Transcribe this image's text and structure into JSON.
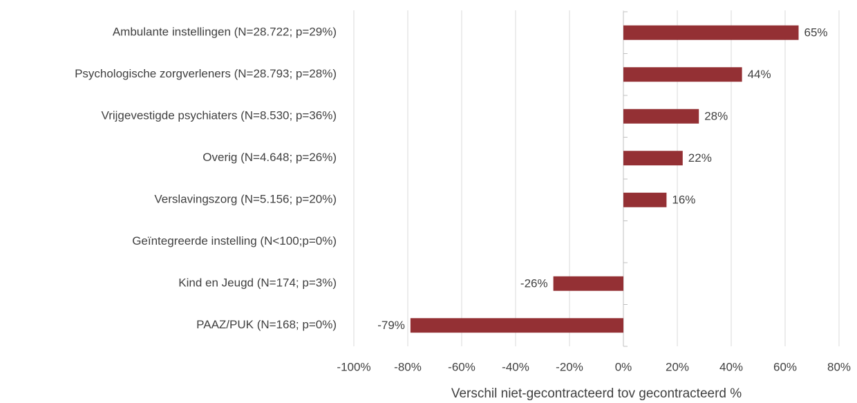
{
  "chart_data": {
    "type": "barh",
    "xlabel": "Verschil niet-gecontracteerd tov gecontracteerd %",
    "categories": [
      "Ambulante instellingen (N=28.722; p=29%)",
      "Psychologische zorgverleners (N=28.793; p=28%)",
      "Vrijgevestigde psychiaters (N=8.530; p=36%)",
      "Overig (N=4.648; p=26%)",
      "Verslavingszorg (N=5.156; p=20%)",
      "Geïntegreerde instelling (N<100;p=0%)",
      "Kind en Jeugd (N=174; p=3%)",
      "PAAZ/PUK (N=168; p=0%)"
    ],
    "values": [
      65,
      44,
      28,
      22,
      16,
      null,
      -26,
      -79
    ],
    "value_labels": [
      "65%",
      "44%",
      "28%",
      "22%",
      "16%",
      null,
      "-26%",
      "-79%"
    ],
    "color": "#943034",
    "xlim": [
      -100,
      80
    ],
    "xticks": [
      {
        "value": -100,
        "label": "-100%"
      },
      {
        "value": -80,
        "label": "-80%"
      },
      {
        "value": -60,
        "label": "-60%"
      },
      {
        "value": -40,
        "label": "-40%"
      },
      {
        "value": -20,
        "label": "-20%"
      },
      {
        "value": 0,
        "label": "0%"
      },
      {
        "value": 20,
        "label": "20%"
      },
      {
        "value": 40,
        "label": "40%"
      },
      {
        "value": 60,
        "label": "60%"
      },
      {
        "value": 80,
        "label": "80%"
      }
    ],
    "grid": true
  }
}
